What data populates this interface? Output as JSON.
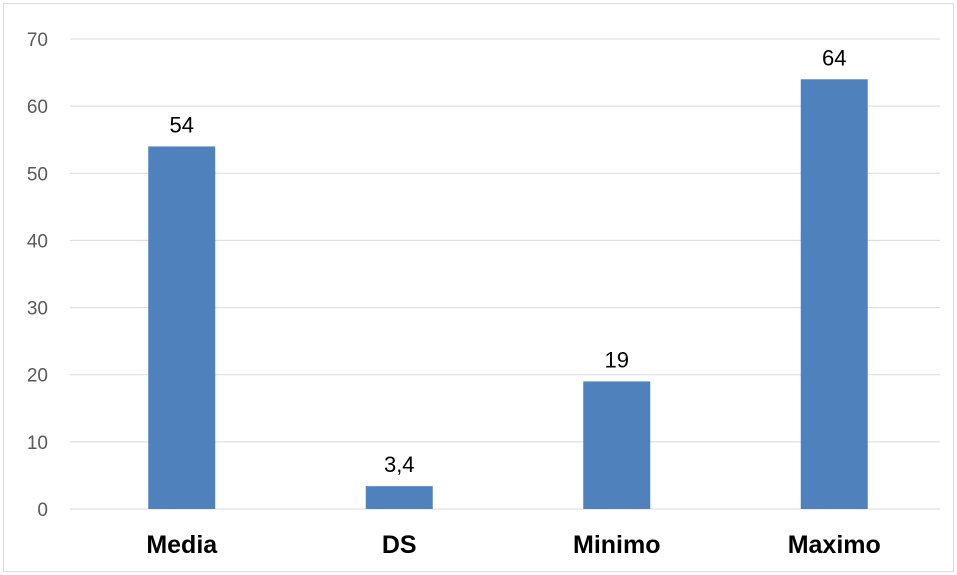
{
  "chart_data": {
    "type": "bar",
    "categories": [
      "Media",
      "DS",
      "Minimo",
      "Maximo"
    ],
    "values": [
      54,
      3.4,
      19,
      64
    ],
    "data_labels": [
      "54",
      "3,4",
      "19",
      "64"
    ],
    "y_ticks": [
      0,
      10,
      20,
      30,
      40,
      50,
      60,
      70
    ],
    "ylim": [
      0,
      70
    ],
    "grid": true,
    "legend": "none",
    "bar_color": "#4f81bd"
  }
}
